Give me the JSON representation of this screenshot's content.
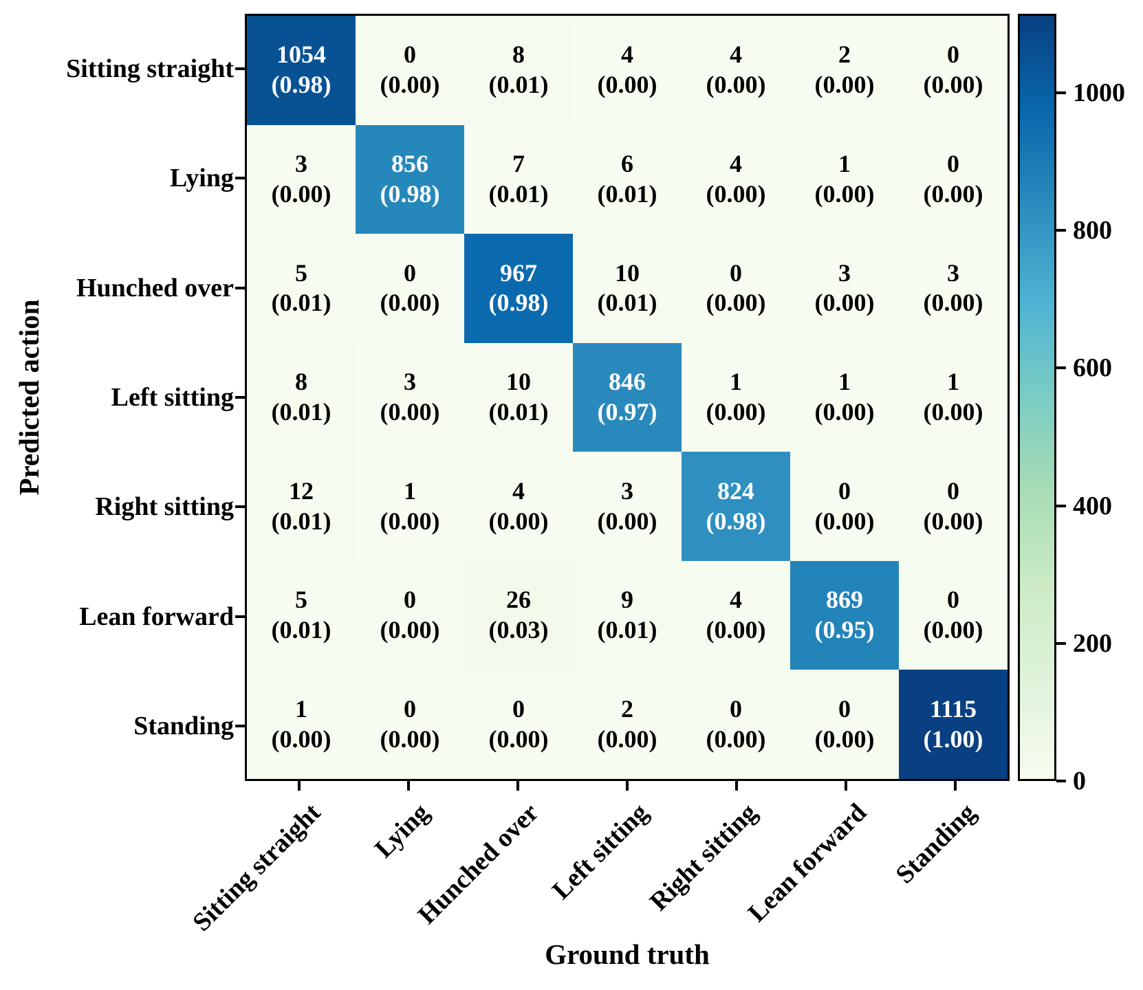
{
  "chart_data": {
    "type": "heatmap",
    "title": "",
    "xlabel": "Ground truth",
    "ylabel": "Predicted action",
    "row_axis": "Predicted action",
    "col_axis": "Ground truth",
    "row_labels": [
      "Sitting straight",
      "Lying",
      "Hunched over",
      "Left sitting",
      "Right sitting",
      "Lean forward",
      "Standing"
    ],
    "col_labels": [
      "Sitting straight",
      "Lying",
      "Hunched over",
      "Left sitting",
      "Right sitting",
      "Lean forward",
      "Standing"
    ],
    "counts": [
      [
        1054,
        0,
        8,
        4,
        4,
        2,
        0
      ],
      [
        3,
        856,
        7,
        6,
        4,
        1,
        0
      ],
      [
        5,
        0,
        967,
        10,
        0,
        3,
        3
      ],
      [
        8,
        3,
        10,
        846,
        1,
        1,
        1
      ],
      [
        12,
        1,
        4,
        3,
        824,
        0,
        0
      ],
      [
        5,
        0,
        26,
        9,
        4,
        869,
        0
      ],
      [
        1,
        0,
        0,
        2,
        0,
        0,
        1115
      ]
    ],
    "proportions": [
      [
        "0.98",
        "0.00",
        "0.01",
        "0.00",
        "0.00",
        "0.00",
        "0.00"
      ],
      [
        "0.00",
        "0.98",
        "0.01",
        "0.01",
        "0.00",
        "0.00",
        "0.00"
      ],
      [
        "0.01",
        "0.00",
        "0.98",
        "0.01",
        "0.00",
        "0.00",
        "0.00"
      ],
      [
        "0.01",
        "0.00",
        "0.01",
        "0.97",
        "0.00",
        "0.00",
        "0.00"
      ],
      [
        "0.01",
        "0.00",
        "0.00",
        "0.00",
        "0.98",
        "0.00",
        "0.00"
      ],
      [
        "0.01",
        "0.00",
        "0.03",
        "0.01",
        "0.00",
        "0.95",
        "0.00"
      ],
      [
        "0.00",
        "0.00",
        "0.00",
        "0.00",
        "0.00",
        "0.00",
        "1.00"
      ]
    ],
    "vmin": 0,
    "vmax": 1115,
    "colorbar_ticks": [
      0,
      200,
      400,
      600,
      800,
      1000
    ],
    "colorbar_position": "right",
    "grid": false,
    "colormap": {
      "name": "GnBu",
      "anchors": [
        "#f7fcf0",
        "#e0f3db",
        "#ccebc5",
        "#a8ddb5",
        "#7bccc4",
        "#4eb3d3",
        "#2b8cbe",
        "#0868ac",
        "#084081"
      ]
    },
    "colors": {
      "cell_text_dark": "#000000",
      "cell_text_light": "#ffffff",
      "spine": "#000000",
      "background": "#ffffff"
    }
  }
}
